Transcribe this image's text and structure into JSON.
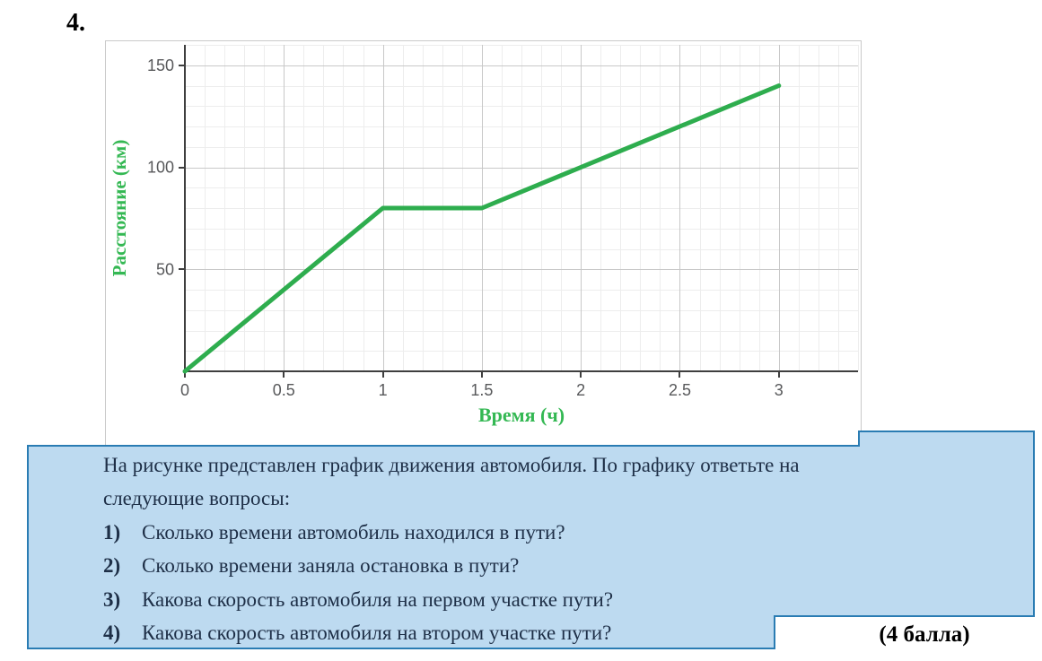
{
  "page": {
    "question_number": "4.",
    "points_label": "(4 балла)"
  },
  "question_box": {
    "bg_color": "#BDDAF0",
    "border_color": "#2A7CB3",
    "text_color": "#1E2F47",
    "intro_lines": [
      "На рисунке представлен график движения автомобиля. По графику ответьте на",
      "следующие вопросы:"
    ],
    "items": [
      {
        "num": "1)",
        "text": "Сколько времени автомобиль находился в пути?"
      },
      {
        "num": "2)",
        "text": "Сколько времени заняла остановка в пути?"
      },
      {
        "num": "3)",
        "text": "Какова скорость автомобиля на первом участке пути?"
      },
      {
        "num": "4)",
        "text": "Какова скорость автомобиля на втором участке пути?"
      }
    ]
  },
  "chart_data": {
    "type": "line",
    "title": "",
    "xlabel": "Время (ч)",
    "ylabel": "Расстояние (км)",
    "xlim": [
      0,
      3.4
    ],
    "ylim": [
      0,
      160
    ],
    "x_minor_step": 0.1,
    "y_minor_step": 10,
    "x_tick_values": [
      0,
      0.5,
      1,
      1.5,
      2,
      2.5,
      3
    ],
    "x_tick_labels": [
      "0",
      "0.5",
      "1",
      "1.5",
      "2",
      "2.5",
      "3"
    ],
    "y_tick_values": [
      50,
      100,
      150
    ],
    "y_tick_labels": [
      "50",
      "100",
      "150"
    ],
    "grid": true,
    "legend_position": "none",
    "series": [
      {
        "name": "график движения автомобиля",
        "points": [
          [
            0,
            0
          ],
          [
            1,
            80
          ],
          [
            1.5,
            80
          ],
          [
            3,
            140
          ]
        ]
      }
    ],
    "colors": {
      "line": "#2EAD4E",
      "axis": "#3F3F3F",
      "grid_minor": "#EDEDED",
      "grid_major": "#C8C8C8",
      "tick_text": "#58595B",
      "label_text": "#34B853"
    }
  }
}
